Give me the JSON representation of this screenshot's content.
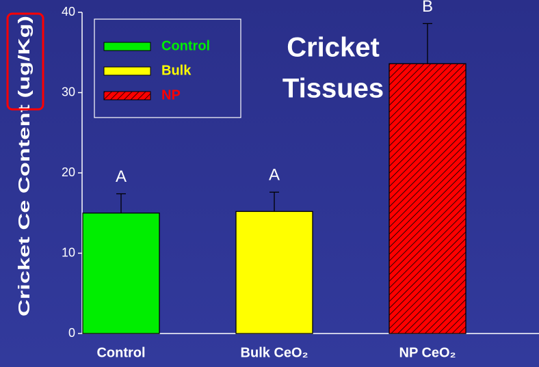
{
  "chart_data": {
    "type": "bar",
    "title": [
      "Cricket",
      "Tissues"
    ],
    "ylabel": "Cricket Ce Content (ug/Kg)",
    "categories": [
      "Control",
      "Bulk CeO₂",
      "NP CeO₂"
    ],
    "values": [
      15,
      15.2,
      33.6
    ],
    "errors": [
      2.4,
      2.4,
      5.0
    ],
    "annotations": [
      "A",
      "A",
      "B"
    ],
    "colors": [
      "#00ee00",
      "#ffff00",
      "#ff0000"
    ],
    "hatch": [
      false,
      false,
      true
    ],
    "legend": [
      "Control",
      "Bulk",
      "NP"
    ],
    "legend_position": "upper left",
    "ylim": [
      0,
      40
    ],
    "yticks": [
      0,
      10,
      20,
      30,
      40
    ]
  }
}
